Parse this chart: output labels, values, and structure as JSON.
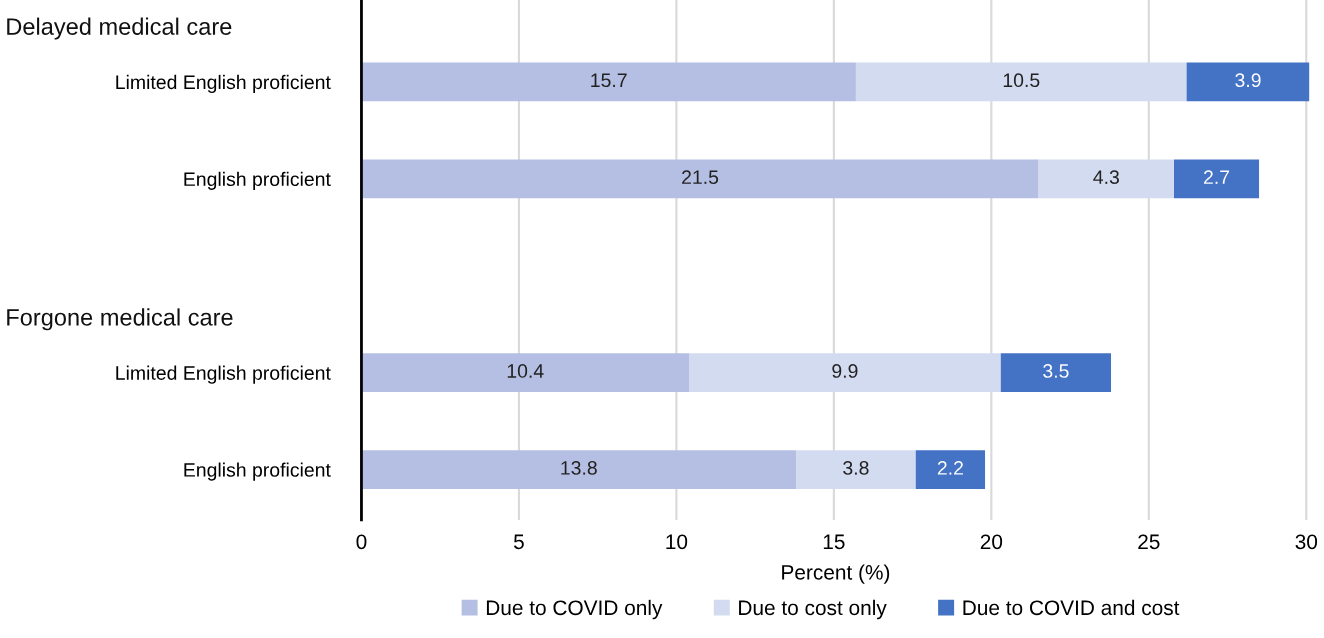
{
  "chart_data": {
    "type": "bar",
    "orientation": "horizontal",
    "stacked": true,
    "categories": [
      null,
      "Limited English proficient",
      "English proficient",
      null,
      "Limited English proficient",
      "English proficient"
    ],
    "annotations": [
      "Delayed medical care",
      "Forgone medical care"
    ],
    "series": [
      {
        "name": "Due to COVID only",
        "color": "#b4bfe3",
        "values": [
          null,
          15.7,
          21.5,
          null,
          10.4,
          13.8
        ]
      },
      {
        "name": "Due to cost only",
        "color": "#d3dbf0",
        "values": [
          null,
          10.5,
          4.3,
          null,
          9.9,
          3.8
        ]
      },
      {
        "name": "Due to COVID and cost",
        "color": "#4472c4",
        "values": [
          null,
          3.9,
          2.7,
          null,
          3.5,
          2.2
        ]
      }
    ],
    "xlabel": "Percent (%)",
    "xlim": [
      0,
      30.1
    ],
    "xticks": [
      0,
      5,
      10,
      15,
      20,
      25,
      30
    ],
    "grid": "x",
    "legend": "bottom",
    "data_labels": true
  }
}
